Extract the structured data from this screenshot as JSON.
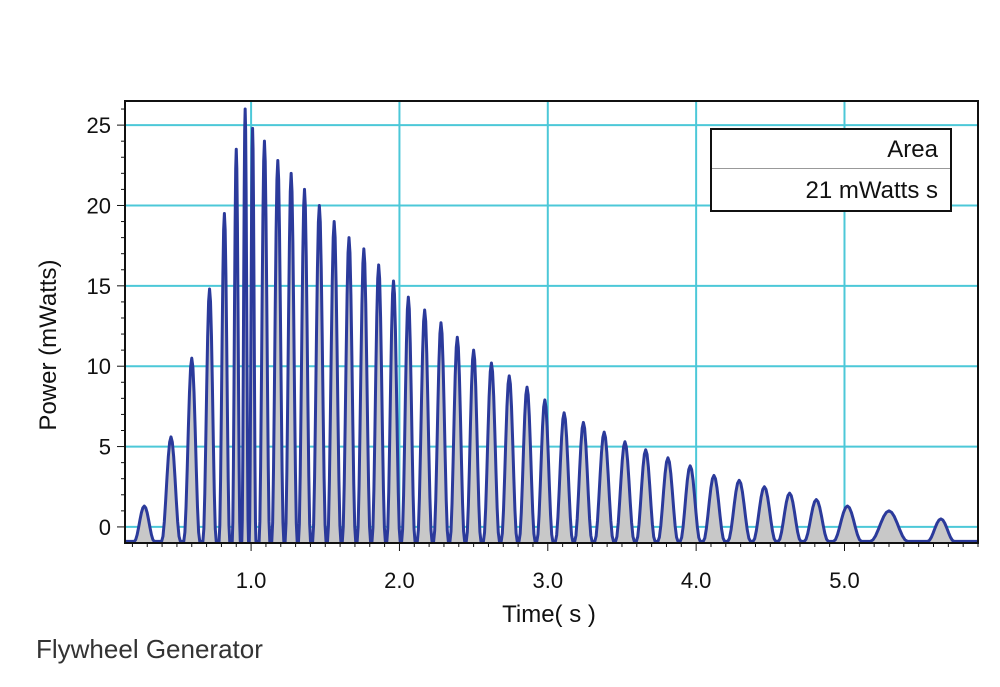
{
  "caption": "Flywheel Generator",
  "area_box": {
    "header": "Area",
    "value": "21 mWatts s"
  },
  "colors": {
    "grid": "#4cc8d8",
    "line": "#2b3a9b",
    "fill": "#c8c8c8",
    "frame": "#111111"
  },
  "chart_data": {
    "type": "area",
    "title": "",
    "xlabel": "Time( s )",
    "ylabel": "Power (mWatts)",
    "xlim": [
      0.15,
      5.9
    ],
    "ylim": [
      -1,
      26.5
    ],
    "xticks": [
      1.0,
      2.0,
      3.0,
      4.0,
      5.0
    ],
    "xtick_labels": [
      "1.0",
      "2.0",
      "3.0",
      "4.0",
      "5.0"
    ],
    "yticks": [
      0,
      5,
      10,
      15,
      20,
      25
    ],
    "ytick_labels": [
      "0",
      "5",
      "10",
      "15",
      "20",
      "25"
    ],
    "grid": true,
    "series": [
      {
        "peaks": [
          {
            "x": 0.28,
            "y": 1.3
          },
          {
            "x": 0.46,
            "y": 5.6
          },
          {
            "x": 0.6,
            "y": 10.5
          },
          {
            "x": 0.72,
            "y": 14.8
          },
          {
            "x": 0.82,
            "y": 19.5
          },
          {
            "x": 0.9,
            "y": 23.5
          },
          {
            "x": 0.96,
            "y": 26.0
          },
          {
            "x": 1.01,
            "y": 24.8
          },
          {
            "x": 1.09,
            "y": 24.0
          },
          {
            "x": 1.18,
            "y": 22.8
          },
          {
            "x": 1.27,
            "y": 22.0
          },
          {
            "x": 1.36,
            "y": 21.0
          },
          {
            "x": 1.46,
            "y": 20.0
          },
          {
            "x": 1.56,
            "y": 19.0
          },
          {
            "x": 1.66,
            "y": 18.0
          },
          {
            "x": 1.76,
            "y": 17.3
          },
          {
            "x": 1.86,
            "y": 16.3
          },
          {
            "x": 1.96,
            "y": 15.3
          },
          {
            "x": 2.06,
            "y": 14.3
          },
          {
            "x": 2.17,
            "y": 13.5
          },
          {
            "x": 2.28,
            "y": 12.7
          },
          {
            "x": 2.39,
            "y": 11.8
          },
          {
            "x": 2.5,
            "y": 11.0
          },
          {
            "x": 2.62,
            "y": 10.2
          },
          {
            "x": 2.74,
            "y": 9.4
          },
          {
            "x": 2.86,
            "y": 8.7
          },
          {
            "x": 2.98,
            "y": 7.9
          },
          {
            "x": 3.11,
            "y": 7.1
          },
          {
            "x": 3.24,
            "y": 6.5
          },
          {
            "x": 3.38,
            "y": 5.9
          },
          {
            "x": 3.52,
            "y": 5.3
          },
          {
            "x": 3.66,
            "y": 4.8
          },
          {
            "x": 3.81,
            "y": 4.3
          },
          {
            "x": 3.96,
            "y": 3.8
          },
          {
            "x": 4.12,
            "y": 3.2
          },
          {
            "x": 4.29,
            "y": 2.9
          },
          {
            "x": 4.46,
            "y": 2.5
          },
          {
            "x": 4.63,
            "y": 2.1
          },
          {
            "x": 4.81,
            "y": 1.7
          },
          {
            "x": 5.02,
            "y": 1.3
          },
          {
            "x": 5.3,
            "y": 1.0
          },
          {
            "x": 5.65,
            "y": 0.5
          }
        ]
      }
    ]
  }
}
